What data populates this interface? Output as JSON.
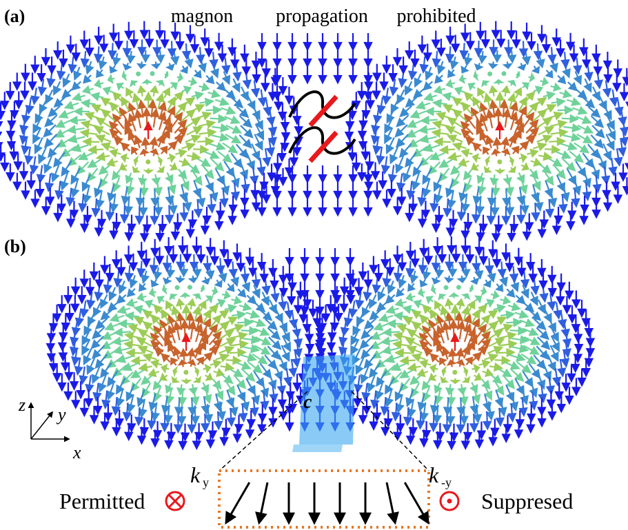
{
  "panels": [
    {
      "label": "(a)",
      "caption": [
        "magnon",
        "propagation",
        "prohibited"
      ]
    },
    {
      "label": "(b)",
      "region_label": "c"
    }
  ],
  "axes": {
    "labels": [
      "z",
      "y",
      "x"
    ]
  },
  "wave_vectors": [
    {
      "symbol": "k",
      "subscript": "y",
      "status": "Permitted"
    },
    {
      "symbol": "k",
      "subscript": "-y",
      "status": "Suppresed"
    }
  ]
}
